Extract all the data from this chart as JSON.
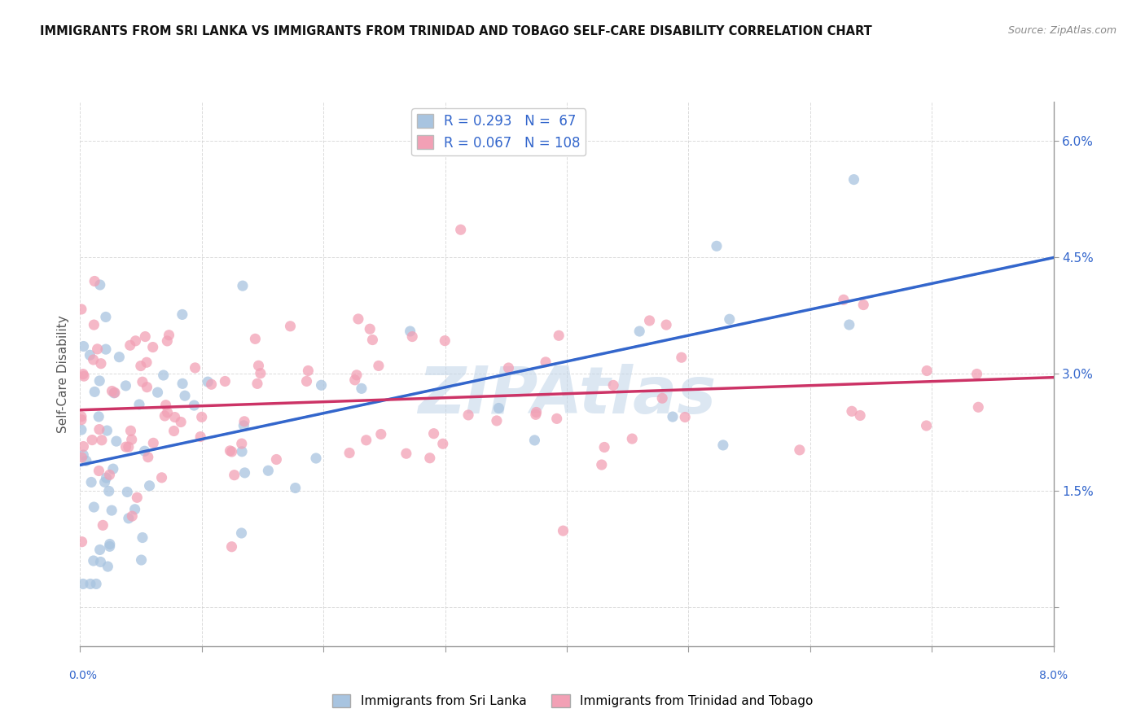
{
  "title": "IMMIGRANTS FROM SRI LANKA VS IMMIGRANTS FROM TRINIDAD AND TOBAGO SELF-CARE DISABILITY CORRELATION CHART",
  "source": "Source: ZipAtlas.com",
  "ylabel": "Self-Care Disability",
  "xmin": 0.0,
  "xmax": 8.0,
  "ymin": 0.0,
  "ymax": 6.5,
  "series1_label": "Immigrants from Sri Lanka",
  "series1_color": "#a8c4e0",
  "series1_R": 0.293,
  "series1_N": 67,
  "series2_label": "Immigrants from Trinidad and Tobago",
  "series2_color": "#f2a0b5",
  "series2_R": 0.067,
  "series2_N": 108,
  "legend_R_color": "#3366cc",
  "watermark": "ZIPAtlas",
  "watermark_color": "#c0d4e8",
  "background_color": "#ffffff",
  "grid_color": "#cccccc",
  "trend1_color": "#3366cc",
  "trend2_color": "#cc3366",
  "trend_dash_color": "#aabbcc"
}
